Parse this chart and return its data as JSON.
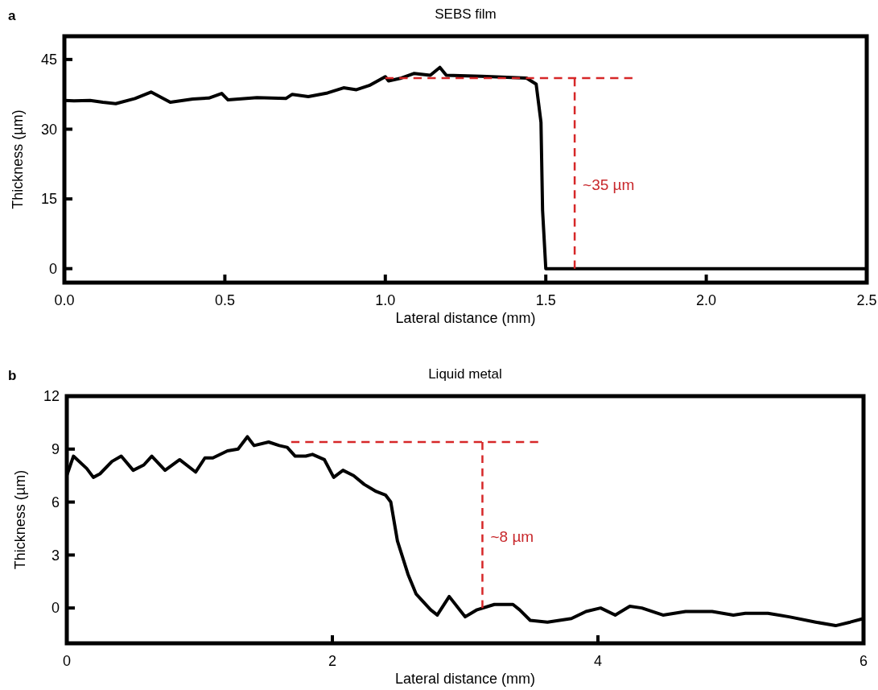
{
  "chart_data": [
    {
      "type": "line",
      "title": "SEBS film",
      "xlabel": "Lateral distance (mm)",
      "ylabel": "Thickness (µm)",
      "xlim": [
        0,
        2.5
      ],
      "ylim": [
        -3,
        50
      ],
      "xticks": [
        {
          "value": 0,
          "label": "0.0"
        },
        0.5,
        {
          "value": 1,
          "label": "1.0"
        },
        1.5,
        {
          "value": 2,
          "label": "2.0"
        },
        2.5
      ],
      "yticks": [
        0,
        15,
        30,
        45
      ],
      "annotations": [
        "a",
        "~35 µm"
      ],
      "series": [
        {
          "color": "#000000",
          "x": [
            0,
            0.03,
            0.08,
            0.12,
            0.16,
            0.22,
            0.27,
            0.33,
            0.4,
            0.45,
            0.49,
            0.51,
            0.6,
            0.69,
            0.71,
            0.76,
            0.82,
            0.87,
            0.91,
            0.95,
            1.0,
            1.01,
            1.05,
            1.09,
            1.14,
            1.17,
            1.19,
            1.3,
            1.44,
            1.47,
            1.485,
            1.49,
            1.5,
            1.8,
            2.1,
            2.5
          ],
          "values": [
            36.2,
            36.1,
            36.2,
            35.8,
            35.5,
            36.6,
            38.0,
            35.8,
            36.5,
            36.7,
            37.7,
            36.3,
            36.8,
            36.6,
            37.5,
            37.0,
            37.8,
            38.9,
            38.5,
            39.4,
            41.3,
            40.4,
            41.0,
            42.0,
            41.6,
            43.3,
            41.6,
            41.4,
            41.0,
            39.7,
            31.5,
            12.5,
            0,
            0,
            0,
            0
          ]
        },
        {
          "type": "line",
          "line_style": "dashed",
          "color": "#d62728",
          "x": [
            1.0,
            1.77
          ],
          "values": [
            41,
            41
          ]
        },
        {
          "type": "line",
          "line_style": "dashed",
          "color": "#d62728",
          "x": [
            1.59,
            1.59
          ],
          "values": [
            41,
            0
          ]
        }
      ]
    },
    {
      "type": "line",
      "title": "Liquid metal",
      "xlabel": "Lateral distance (mm)",
      "ylabel": "Thickness (µm)",
      "xlim": [
        0,
        6
      ],
      "ylim": [
        -2,
        12
      ],
      "xticks": [
        0,
        2,
        4,
        6
      ],
      "yticks": [
        0,
        3,
        6,
        9,
        12
      ],
      "annotations": [
        "b",
        "~8 µm"
      ],
      "series": [
        {
          "color": "#000000",
          "x": [
            0,
            0.05,
            0.15,
            0.2,
            0.25,
            0.34,
            0.41,
            0.5,
            0.58,
            0.64,
            0.74,
            0.85,
            0.97,
            1.04,
            1.1,
            1.21,
            1.29,
            1.36,
            1.41,
            1.52,
            1.6,
            1.66,
            1.72,
            1.8,
            1.85,
            1.94,
            2.01,
            2.08,
            2.16,
            2.24,
            2.33,
            2.4,
            2.44,
            2.49,
            2.57,
            2.63,
            2.74,
            2.79,
            2.88,
            3.0,
            3.09,
            3.22,
            3.36,
            3.41,
            3.49,
            3.62,
            3.8,
            3.91,
            4.02,
            4.13,
            4.24,
            4.33,
            4.49,
            4.66,
            4.86,
            5.02,
            5.11,
            5.28,
            5.44,
            5.64,
            5.79,
            5.9,
            6.0
          ],
          "values": [
            7.5,
            8.6,
            7.9,
            7.4,
            7.6,
            8.3,
            8.6,
            7.8,
            8.1,
            8.6,
            7.8,
            8.4,
            7.7,
            8.5,
            8.5,
            8.9,
            9.0,
            9.7,
            9.2,
            9.4,
            9.2,
            9.1,
            8.6,
            8.6,
            8.7,
            8.4,
            7.4,
            7.8,
            7.5,
            7.0,
            6.6,
            6.4,
            6.0,
            3.8,
            1.9,
            0.8,
            -0.1,
            -0.4,
            0.65,
            -0.5,
            -0.1,
            0.2,
            0.2,
            -0.1,
            -0.7,
            -0.8,
            -0.6,
            -0.2,
            0.0,
            -0.4,
            0.1,
            0.0,
            -0.4,
            -0.2,
            -0.2,
            -0.4,
            -0.3,
            -0.3,
            -0.5,
            -0.8,
            -1.0,
            -0.8,
            -0.6
          ]
        },
        {
          "type": "line",
          "line_style": "dashed",
          "color": "#d62728",
          "x": [
            1.69,
            3.55
          ],
          "values": [
            9.4,
            9.4
          ]
        },
        {
          "type": "line",
          "line_style": "dashed",
          "color": "#d62728",
          "x": [
            3.13,
            3.13
          ],
          "values": [
            9.4,
            0
          ]
        }
      ]
    }
  ]
}
